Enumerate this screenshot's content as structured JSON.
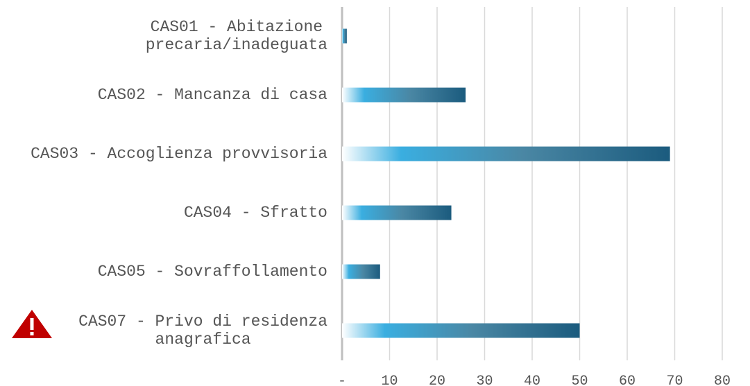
{
  "chart_data": {
    "type": "bar",
    "categories": [
      "CAS01 - Abitazione\nprecaria/inadeguata",
      "CAS02 - Mancanza di casa",
      "CAS03 - Accoglienza provvisoria",
      "CAS04 - Sfratto",
      "CAS05 - Sovraffollamento",
      "CAS07 - Privo di residenza\nanagrafica"
    ],
    "values": [
      1,
      26,
      69,
      23,
      8,
      50
    ],
    "color": "#1b5b7e",
    "xlim": [
      0,
      80
    ],
    "xticks": [
      {
        "value": 0,
        "label": "-"
      },
      10,
      20,
      30,
      40,
      50,
      60,
      70,
      80
    ],
    "grid": true
  }
}
